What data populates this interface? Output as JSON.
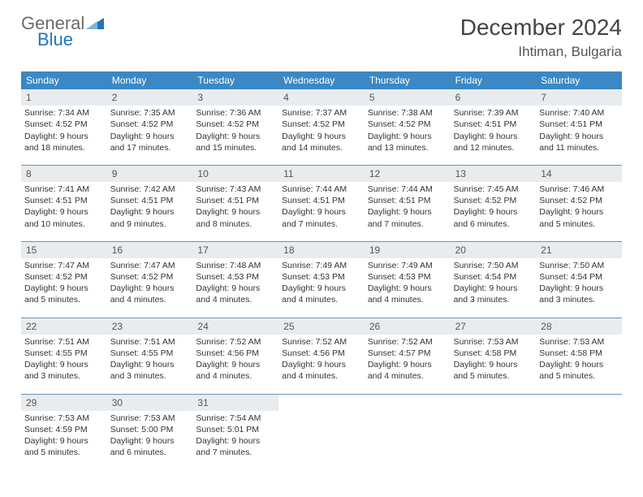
{
  "logo": {
    "line1": "General",
    "line2": "Blue"
  },
  "title": "December 2024",
  "subtitle": "Ihtiman, Bulgaria",
  "colors": {
    "header_bg": "#3b88c4",
    "daynum_bg": "#e9ecee",
    "week_border": "#6b93b8",
    "logo_gray": "#6b6b6b",
    "logo_blue": "#1f76bc"
  },
  "weekdays": [
    "Sunday",
    "Monday",
    "Tuesday",
    "Wednesday",
    "Thursday",
    "Friday",
    "Saturday"
  ],
  "days": [
    {
      "n": "1",
      "sunrise": "7:34 AM",
      "sunset": "4:52 PM",
      "day_h": "9",
      "day_m": "18"
    },
    {
      "n": "2",
      "sunrise": "7:35 AM",
      "sunset": "4:52 PM",
      "day_h": "9",
      "day_m": "17"
    },
    {
      "n": "3",
      "sunrise": "7:36 AM",
      "sunset": "4:52 PM",
      "day_h": "9",
      "day_m": "15"
    },
    {
      "n": "4",
      "sunrise": "7:37 AM",
      "sunset": "4:52 PM",
      "day_h": "9",
      "day_m": "14"
    },
    {
      "n": "5",
      "sunrise": "7:38 AM",
      "sunset": "4:52 PM",
      "day_h": "9",
      "day_m": "13"
    },
    {
      "n": "6",
      "sunrise": "7:39 AM",
      "sunset": "4:51 PM",
      "day_h": "9",
      "day_m": "12"
    },
    {
      "n": "7",
      "sunrise": "7:40 AM",
      "sunset": "4:51 PM",
      "day_h": "9",
      "day_m": "11"
    },
    {
      "n": "8",
      "sunrise": "7:41 AM",
      "sunset": "4:51 PM",
      "day_h": "9",
      "day_m": "10"
    },
    {
      "n": "9",
      "sunrise": "7:42 AM",
      "sunset": "4:51 PM",
      "day_h": "9",
      "day_m": "9"
    },
    {
      "n": "10",
      "sunrise": "7:43 AM",
      "sunset": "4:51 PM",
      "day_h": "9",
      "day_m": "8"
    },
    {
      "n": "11",
      "sunrise": "7:44 AM",
      "sunset": "4:51 PM",
      "day_h": "9",
      "day_m": "7"
    },
    {
      "n": "12",
      "sunrise": "7:44 AM",
      "sunset": "4:51 PM",
      "day_h": "9",
      "day_m": "7"
    },
    {
      "n": "13",
      "sunrise": "7:45 AM",
      "sunset": "4:52 PM",
      "day_h": "9",
      "day_m": "6"
    },
    {
      "n": "14",
      "sunrise": "7:46 AM",
      "sunset": "4:52 PM",
      "day_h": "9",
      "day_m": "5"
    },
    {
      "n": "15",
      "sunrise": "7:47 AM",
      "sunset": "4:52 PM",
      "day_h": "9",
      "day_m": "5"
    },
    {
      "n": "16",
      "sunrise": "7:47 AM",
      "sunset": "4:52 PM",
      "day_h": "9",
      "day_m": "4"
    },
    {
      "n": "17",
      "sunrise": "7:48 AM",
      "sunset": "4:53 PM",
      "day_h": "9",
      "day_m": "4"
    },
    {
      "n": "18",
      "sunrise": "7:49 AM",
      "sunset": "4:53 PM",
      "day_h": "9",
      "day_m": "4"
    },
    {
      "n": "19",
      "sunrise": "7:49 AM",
      "sunset": "4:53 PM",
      "day_h": "9",
      "day_m": "4"
    },
    {
      "n": "20",
      "sunrise": "7:50 AM",
      "sunset": "4:54 PM",
      "day_h": "9",
      "day_m": "3"
    },
    {
      "n": "21",
      "sunrise": "7:50 AM",
      "sunset": "4:54 PM",
      "day_h": "9",
      "day_m": "3"
    },
    {
      "n": "22",
      "sunrise": "7:51 AM",
      "sunset": "4:55 PM",
      "day_h": "9",
      "day_m": "3"
    },
    {
      "n": "23",
      "sunrise": "7:51 AM",
      "sunset": "4:55 PM",
      "day_h": "9",
      "day_m": "3"
    },
    {
      "n": "24",
      "sunrise": "7:52 AM",
      "sunset": "4:56 PM",
      "day_h": "9",
      "day_m": "4"
    },
    {
      "n": "25",
      "sunrise": "7:52 AM",
      "sunset": "4:56 PM",
      "day_h": "9",
      "day_m": "4"
    },
    {
      "n": "26",
      "sunrise": "7:52 AM",
      "sunset": "4:57 PM",
      "day_h": "9",
      "day_m": "4"
    },
    {
      "n": "27",
      "sunrise": "7:53 AM",
      "sunset": "4:58 PM",
      "day_h": "9",
      "day_m": "5"
    },
    {
      "n": "28",
      "sunrise": "7:53 AM",
      "sunset": "4:58 PM",
      "day_h": "9",
      "day_m": "5"
    },
    {
      "n": "29",
      "sunrise": "7:53 AM",
      "sunset": "4:59 PM",
      "day_h": "9",
      "day_m": "5"
    },
    {
      "n": "30",
      "sunrise": "7:53 AM",
      "sunset": "5:00 PM",
      "day_h": "9",
      "day_m": "6"
    },
    {
      "n": "31",
      "sunrise": "7:54 AM",
      "sunset": "5:01 PM",
      "day_h": "9",
      "day_m": "7"
    }
  ],
  "labels": {
    "sunrise_prefix": "Sunrise: ",
    "sunset_prefix": "Sunset: ",
    "daylight_prefix": "Daylight: ",
    "hours_word": " hours",
    "and_word": "and ",
    "minutes_word": " minutes."
  }
}
